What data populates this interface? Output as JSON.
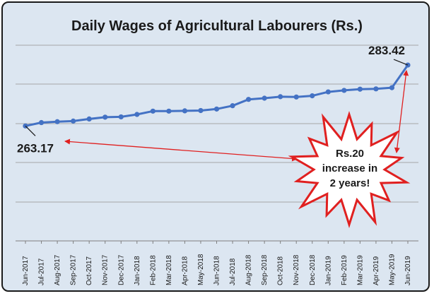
{
  "chart_data": {
    "type": "line",
    "title": "Daily Wages of Agricultural Labourers (Rs.)",
    "xlabel": "",
    "ylabel": "",
    "categories": [
      "Jun-2017",
      "Jul-2017",
      "Aug-2017",
      "Sep-2017",
      "Oct-2017",
      "Nov-2017",
      "Dec-2017",
      "Jan-2018",
      "Feb-2018",
      "Mar-2018",
      "Apr-2018",
      "May-2018",
      "Jun-2018",
      "Jul-2018",
      "Aug-2018",
      "Sep-2018",
      "Oct-2018",
      "Nov-2018",
      "Dec-2018",
      "Jan-2019",
      "Feb-2019",
      "Mar-2019",
      "Apr-2019",
      "May-2019",
      "Jun-2019"
    ],
    "values": [
      263.17,
      264.3,
      264.6,
      264.8,
      265.5,
      266.1,
      266.2,
      267.0,
      268.1,
      268.1,
      268.2,
      268.3,
      268.8,
      269.9,
      272.0,
      272.4,
      272.9,
      272.8,
      273.2,
      274.5,
      275.0,
      275.4,
      275.5,
      275.9,
      283.42
    ],
    "grid": true,
    "legend": "none",
    "line_color": "#4472c4",
    "annotations": {
      "start_value": "263.17",
      "end_value": "283.42",
      "callout": [
        "Rs.20",
        "increase in",
        "2 years!"
      ],
      "arrow_color": "#e02020"
    }
  }
}
